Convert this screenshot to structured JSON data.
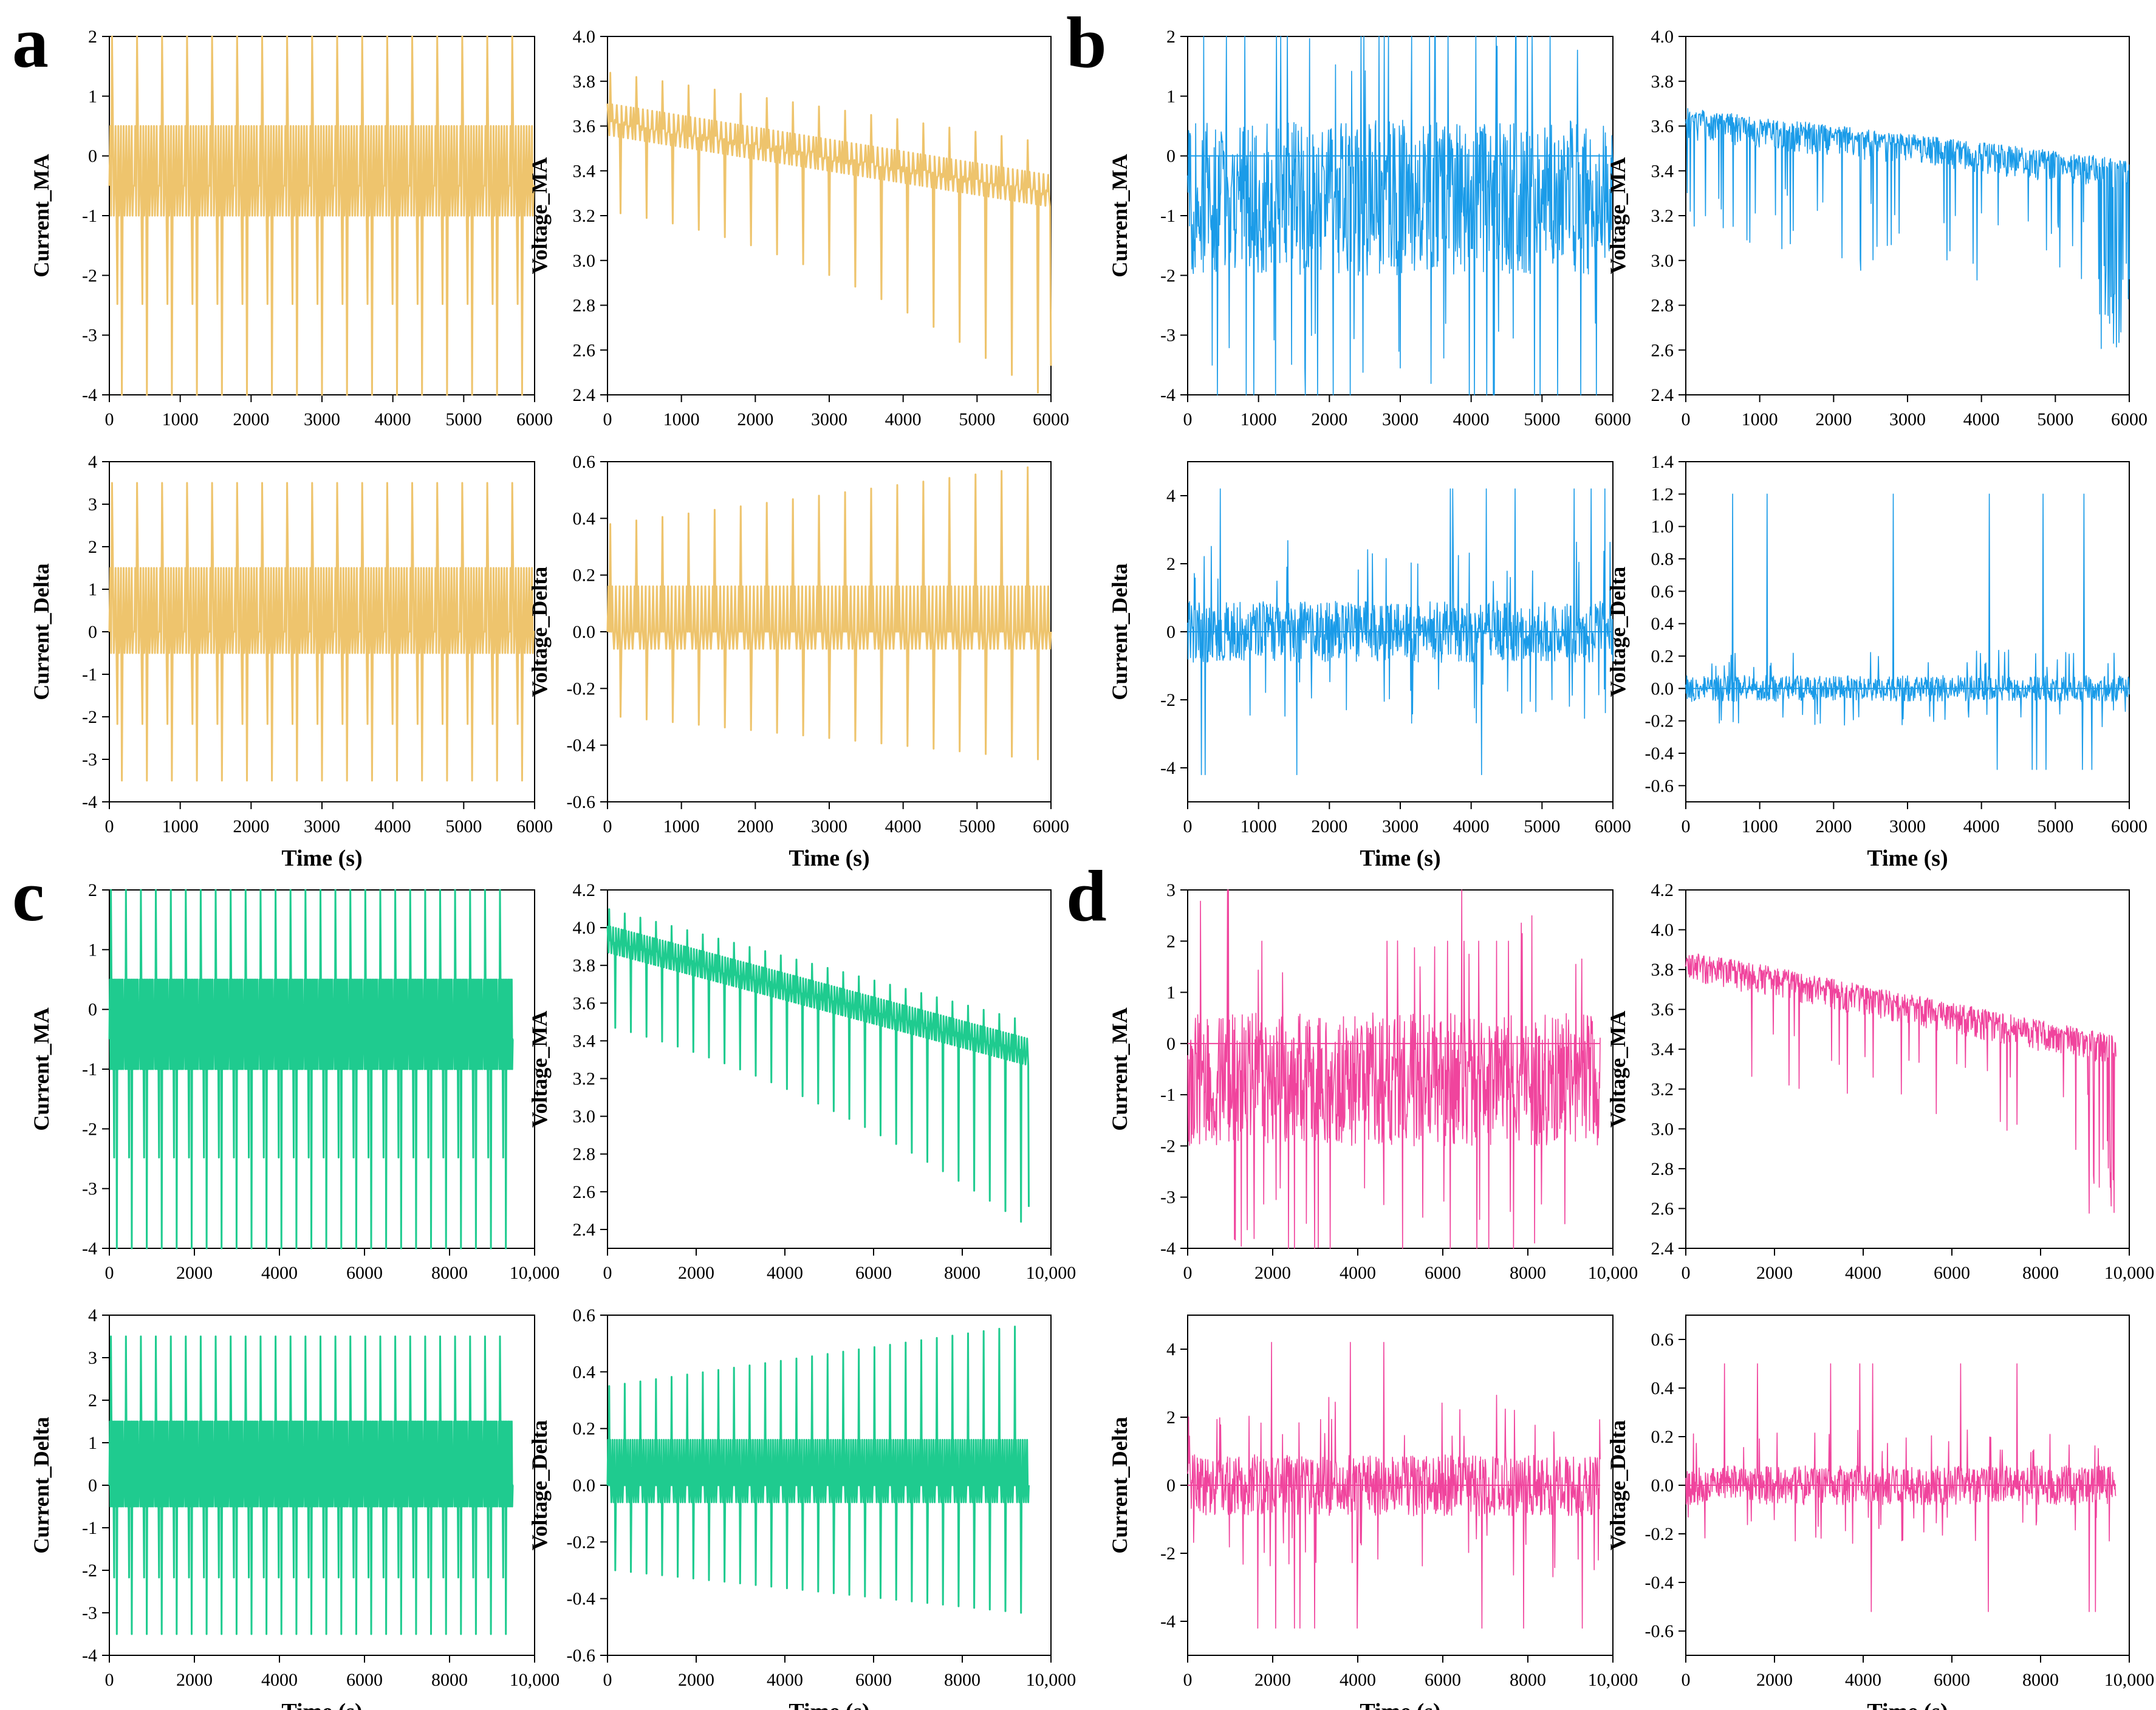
{
  "panels": [
    {
      "letter": "a",
      "color": "#EEC46D",
      "style": "periodic",
      "chart_data": [
        {
          "type": "line",
          "xlabel": "",
          "ylabel": "Current_MA",
          "xlim": [
            0,
            6000
          ],
          "ylim": [
            -4,
            2
          ],
          "xticks": [
            0,
            1000,
            2000,
            3000,
            4000,
            5000,
            6000
          ],
          "xticklabels": [
            "0",
            "1000",
            "2000",
            "3000",
            "4000",
            "5000",
            "6000"
          ],
          "yticks": [
            -4,
            -3,
            -2,
            -1,
            0,
            1,
            2
          ],
          "yticklabels": [
            "-4",
            "-3",
            "-2",
            "-1",
            "0",
            "1",
            "2"
          ],
          "x_end": 6000,
          "cycles": 17,
          "baseline": -0.5,
          "levels": [
            0.5,
            -1.0
          ],
          "spike_high": 2,
          "spike_low": -4
        },
        {
          "type": "line",
          "xlabel": "",
          "ylabel": "Voltage_MA",
          "xlim": [
            0,
            6000
          ],
          "ylim": [
            2.4,
            4.0
          ],
          "xticks": [
            0,
            1000,
            2000,
            3000,
            4000,
            5000,
            6000
          ],
          "xticklabels": [
            "0",
            "1000",
            "2000",
            "3000",
            "4000",
            "5000",
            "6000"
          ],
          "yticks": [
            2.4,
            2.6,
            2.8,
            3.0,
            3.2,
            3.4,
            3.6,
            3.8,
            4.0
          ],
          "yticklabels": [
            "2.4",
            "2.6",
            "2.8",
            "3.0",
            "3.2",
            "3.4",
            "3.6",
            "3.8",
            "4.0"
          ],
          "x_end": 6000,
          "cycles": 17,
          "trend_start": 3.62,
          "trend_end": 3.3,
          "spike_up": 0.22,
          "spike_down_start": 0.4,
          "spike_down_end": 0.9,
          "min_value": 2.53
        },
        {
          "type": "line",
          "xlabel": "Time (s)",
          "ylabel": "Current_Delta",
          "xlim": [
            0,
            6000
          ],
          "ylim": [
            -4,
            4
          ],
          "xticks": [
            0,
            1000,
            2000,
            3000,
            4000,
            5000,
            6000
          ],
          "xticklabels": [
            "0",
            "1000",
            "2000",
            "3000",
            "4000",
            "5000",
            "6000"
          ],
          "yticks": [
            -4,
            -3,
            -2,
            -1,
            0,
            1,
            2,
            3,
            4
          ],
          "yticklabels": [
            "-4",
            "-3",
            "-2",
            "-1",
            "0",
            "1",
            "2",
            "3",
            "4"
          ],
          "x_end": 6000,
          "cycles": 17,
          "baseline": 0,
          "levels": [
            1.5,
            -0.5
          ],
          "spike_high": 3.5,
          "spike_low": -3.5
        },
        {
          "type": "line",
          "xlabel": "Time (s)",
          "ylabel": "Voltage_Delta",
          "xlim": [
            0,
            6000
          ],
          "ylim": [
            -0.6,
            0.6
          ],
          "xticks": [
            0,
            1000,
            2000,
            3000,
            4000,
            5000,
            6000
          ],
          "xticklabels": [
            "0",
            "1000",
            "2000",
            "3000",
            "4000",
            "5000",
            "6000"
          ],
          "yticks": [
            -0.6,
            -0.4,
            -0.2,
            0.0,
            0.2,
            0.4,
            0.6
          ],
          "yticklabels": [
            "-0.6",
            "-0.4",
            "-0.2",
            "0.0",
            "0.2",
            "0.4",
            "0.6"
          ],
          "x_end": 6000,
          "cycles": 17,
          "baseline": 0,
          "spike_up_start": 0.38,
          "spike_up_end": 0.58,
          "spike_down_start": -0.3,
          "spike_down_end": -0.45
        }
      ]
    },
    {
      "letter": "b",
      "color": "#1A9BE8",
      "style": "noisy",
      "chart_data": [
        {
          "type": "line",
          "xlabel": "",
          "ylabel": "Current_MA",
          "xlim": [
            0,
            6000
          ],
          "ylim": [
            -4,
            2
          ],
          "xticks": [
            0,
            1000,
            2000,
            3000,
            4000,
            5000,
            6000
          ],
          "xticklabels": [
            "0",
            "1000",
            "2000",
            "3000",
            "4000",
            "5000",
            "6000"
          ],
          "yticks": [
            -4,
            -3,
            -2,
            -1,
            0,
            1,
            2
          ],
          "yticklabels": [
            "-4",
            "-3",
            "-2",
            "-1",
            "0",
            "1",
            "2"
          ],
          "x_end": 6000,
          "center": -0.7,
          "amp": 1.3,
          "high": 2,
          "low": -4
        },
        {
          "type": "line",
          "xlabel": "",
          "ylabel": "Voltage_MA",
          "xlim": [
            0,
            6000
          ],
          "ylim": [
            2.4,
            4.0
          ],
          "xticks": [
            0,
            1000,
            2000,
            3000,
            4000,
            5000,
            6000
          ],
          "xticklabels": [
            "0",
            "1000",
            "2000",
            "3000",
            "4000",
            "5000",
            "6000"
          ],
          "yticks": [
            2.4,
            2.6,
            2.8,
            3.0,
            3.2,
            3.4,
            3.6,
            3.8,
            4.0
          ],
          "yticklabels": [
            "2.4",
            "2.6",
            "2.8",
            "3.0",
            "3.2",
            "3.4",
            "3.6",
            "3.8",
            "4.0"
          ],
          "x_end": 6000,
          "trend_start": 3.68,
          "trend_end": 3.45,
          "amp": 0.09,
          "low": 2.59
        },
        {
          "type": "line",
          "xlabel": "Time (s)",
          "ylabel": "Current_Delta",
          "xlim": [
            0,
            6000
          ],
          "ylim": [
            -5,
            5
          ],
          "xticks": [
            0,
            1000,
            2000,
            3000,
            4000,
            5000,
            6000
          ],
          "xticklabels": [
            "0",
            "1000",
            "2000",
            "3000",
            "4000",
            "5000",
            "6000"
          ],
          "yticks": [
            -4,
            -2,
            0,
            2,
            4
          ],
          "yticklabels": [
            "-4",
            "-2",
            "0",
            "2",
            "4"
          ],
          "x_end": 6000,
          "center": 0,
          "amp": 0.9,
          "high": 4.2,
          "low": -4.2
        },
        {
          "type": "line",
          "xlabel": "Time (s)",
          "ylabel": "Voltage_Delta",
          "xlim": [
            0,
            6000
          ],
          "ylim": [
            -0.7,
            1.4
          ],
          "xticks": [
            0,
            1000,
            2000,
            3000,
            4000,
            5000,
            6000
          ],
          "xticklabels": [
            "0",
            "1000",
            "2000",
            "3000",
            "4000",
            "5000",
            "6000"
          ],
          "yticks": [
            -0.6,
            -0.4,
            -0.2,
            0.0,
            0.2,
            0.4,
            0.6,
            0.8,
            1.0,
            1.2,
            1.4
          ],
          "yticklabels": [
            "-0.6",
            "-0.4",
            "-0.2",
            "0.0",
            "0.2",
            "0.4",
            "0.6",
            "0.8",
            "1.0",
            "1.2",
            "1.4"
          ],
          "x_end": 6000,
          "center": 0,
          "amp": 0.08,
          "high": 1.2,
          "low": -0.5
        }
      ]
    },
    {
      "letter": "c",
      "color": "#1FCB8F",
      "style": "periodic",
      "chart_data": [
        {
          "type": "line",
          "xlabel": "",
          "ylabel": "Current_MA",
          "xlim": [
            0,
            10000
          ],
          "ylim": [
            -4,
            2
          ],
          "xticks": [
            0,
            2000,
            4000,
            6000,
            8000,
            10000
          ],
          "xticklabels": [
            "0",
            "2000",
            "4000",
            "6000",
            "8000",
            "10,000"
          ],
          "yticks": [
            -4,
            -3,
            -2,
            -1,
            0,
            1,
            2
          ],
          "yticklabels": [
            "-4",
            "-3",
            "-2",
            "-1",
            "0",
            "1",
            "2"
          ],
          "x_end": 9500,
          "cycles": 27,
          "baseline": -0.5,
          "levels": [
            0.5,
            -1.0
          ],
          "spike_high": 2,
          "spike_low": -4
        },
        {
          "type": "line",
          "xlabel": "",
          "ylabel": "Voltage_MA",
          "xlim": [
            0,
            10000
          ],
          "ylim": [
            2.3,
            4.2
          ],
          "xticks": [
            0,
            2000,
            4000,
            6000,
            8000,
            10000
          ],
          "xticklabels": [
            "0",
            "2000",
            "4000",
            "6000",
            "8000",
            "10,000"
          ],
          "yticks": [
            2.4,
            2.6,
            2.8,
            3.0,
            3.2,
            3.4,
            3.6,
            3.8,
            4.0,
            4.2
          ],
          "yticklabels": [
            "2.4",
            "2.6",
            "2.8",
            "3.0",
            "3.2",
            "3.4",
            "3.6",
            "3.8",
            "4.0",
            "4.2"
          ],
          "x_end": 9500,
          "cycles": 27,
          "trend_start": 3.93,
          "trend_end": 3.33,
          "spike_up": 0.17,
          "spike_down_start": 0.45,
          "spike_down_end": 0.9,
          "min_value": 2.52
        },
        {
          "type": "line",
          "xlabel": "Time (s)",
          "ylabel": "Current_Delta",
          "xlim": [
            0,
            10000
          ],
          "ylim": [
            -4,
            4
          ],
          "xticks": [
            0,
            2000,
            4000,
            6000,
            8000,
            10000
          ],
          "xticklabels": [
            "0",
            "2000",
            "4000",
            "6000",
            "8000",
            "10,000"
          ],
          "yticks": [
            -4,
            -3,
            -2,
            -1,
            0,
            1,
            2,
            3,
            4
          ],
          "yticklabels": [
            "-4",
            "-3",
            "-2",
            "-1",
            "0",
            "1",
            "2",
            "3",
            "4"
          ],
          "x_end": 9500,
          "cycles": 27,
          "baseline": 0,
          "levels": [
            1.5,
            -0.5
          ],
          "spike_high": 3.5,
          "spike_low": -3.5
        },
        {
          "type": "line",
          "xlabel": "Time (s)",
          "ylabel": "Voltage_Delta",
          "xlim": [
            0,
            10000
          ],
          "ylim": [
            -0.6,
            0.6
          ],
          "xticks": [
            0,
            2000,
            4000,
            6000,
            8000,
            10000
          ],
          "xticklabels": [
            "0",
            "2000",
            "4000",
            "6000",
            "8000",
            "10,000"
          ],
          "yticks": [
            -0.6,
            -0.4,
            -0.2,
            0.0,
            0.2,
            0.4,
            0.6
          ],
          "yticklabels": [
            "-0.6",
            "-0.4",
            "-0.2",
            "0.0",
            "0.2",
            "0.4",
            "0.6"
          ],
          "x_end": 9500,
          "cycles": 27,
          "baseline": 0,
          "spike_up_start": 0.35,
          "spike_up_end": 0.56,
          "spike_down_start": -0.3,
          "spike_down_end": -0.45
        }
      ]
    },
    {
      "letter": "d",
      "color": "#F0449D",
      "style": "noisy",
      "chart_data": [
        {
          "type": "line",
          "xlabel": "",
          "ylabel": "Current_MA",
          "xlim": [
            0,
            10000
          ],
          "ylim": [
            -4,
            3
          ],
          "xticks": [
            0,
            2000,
            4000,
            6000,
            8000,
            10000
          ],
          "xticklabels": [
            "0",
            "2000",
            "4000",
            "6000",
            "8000",
            "10,000"
          ],
          "yticks": [
            -4,
            -3,
            -2,
            -1,
            0,
            1,
            2,
            3
          ],
          "yticklabels": [
            "-4",
            "-3",
            "-2",
            "-1",
            "0",
            "1",
            "2",
            "3"
          ],
          "x_end": 9700,
          "center": -0.7,
          "amp": 1.3,
          "high": 2,
          "low": -4
        },
        {
          "type": "line",
          "xlabel": "",
          "ylabel": "Voltage_MA",
          "xlim": [
            0,
            10000
          ],
          "ylim": [
            2.4,
            4.2
          ],
          "xticks": [
            0,
            2000,
            4000,
            6000,
            8000,
            10000
          ],
          "xticklabels": [
            "0",
            "2000",
            "4000",
            "6000",
            "8000",
            "10,000"
          ],
          "yticks": [
            2.4,
            2.6,
            2.8,
            3.0,
            3.2,
            3.4,
            3.6,
            3.8,
            4.0,
            4.2
          ],
          "yticklabels": [
            "2.4",
            "2.6",
            "2.8",
            "3.0",
            "3.2",
            "3.4",
            "3.6",
            "3.8",
            "4.0",
            "4.2"
          ],
          "x_end": 9700,
          "trend_start": 3.9,
          "trend_end": 3.47,
          "amp": 0.1,
          "low": 2.56
        },
        {
          "type": "line",
          "xlabel": "Time (s)",
          "ylabel": "Current_Delta",
          "xlim": [
            0,
            10000
          ],
          "ylim": [
            -5,
            5
          ],
          "xticks": [
            0,
            2000,
            4000,
            6000,
            8000,
            10000
          ],
          "xticklabels": [
            "0",
            "2000",
            "4000",
            "6000",
            "8000",
            "10,000"
          ],
          "yticks": [
            -4,
            -2,
            0,
            2,
            4
          ],
          "yticklabels": [
            "-4",
            "-2",
            "0",
            "2",
            "4"
          ],
          "x_end": 9700,
          "center": 0,
          "amp": 0.9,
          "high": 4.2,
          "low": -4.2
        },
        {
          "type": "line",
          "xlabel": "Time (s)",
          "ylabel": "Voltage_Delta",
          "xlim": [
            0,
            10000
          ],
          "ylim": [
            -0.7,
            0.7
          ],
          "xticks": [
            0,
            2000,
            4000,
            6000,
            8000,
            10000
          ],
          "xticklabels": [
            "0",
            "2000",
            "4000",
            "6000",
            "8000",
            "10,000"
          ],
          "yticks": [
            -0.6,
            -0.4,
            -0.2,
            0.0,
            0.2,
            0.4,
            0.6
          ],
          "yticklabels": [
            "-0.6",
            "-0.4",
            "-0.2",
            "0.0",
            "0.2",
            "0.4",
            "0.6"
          ],
          "x_end": 9700,
          "center": 0,
          "amp": 0.08,
          "high": 0.5,
          "low": -0.52
        }
      ]
    }
  ]
}
